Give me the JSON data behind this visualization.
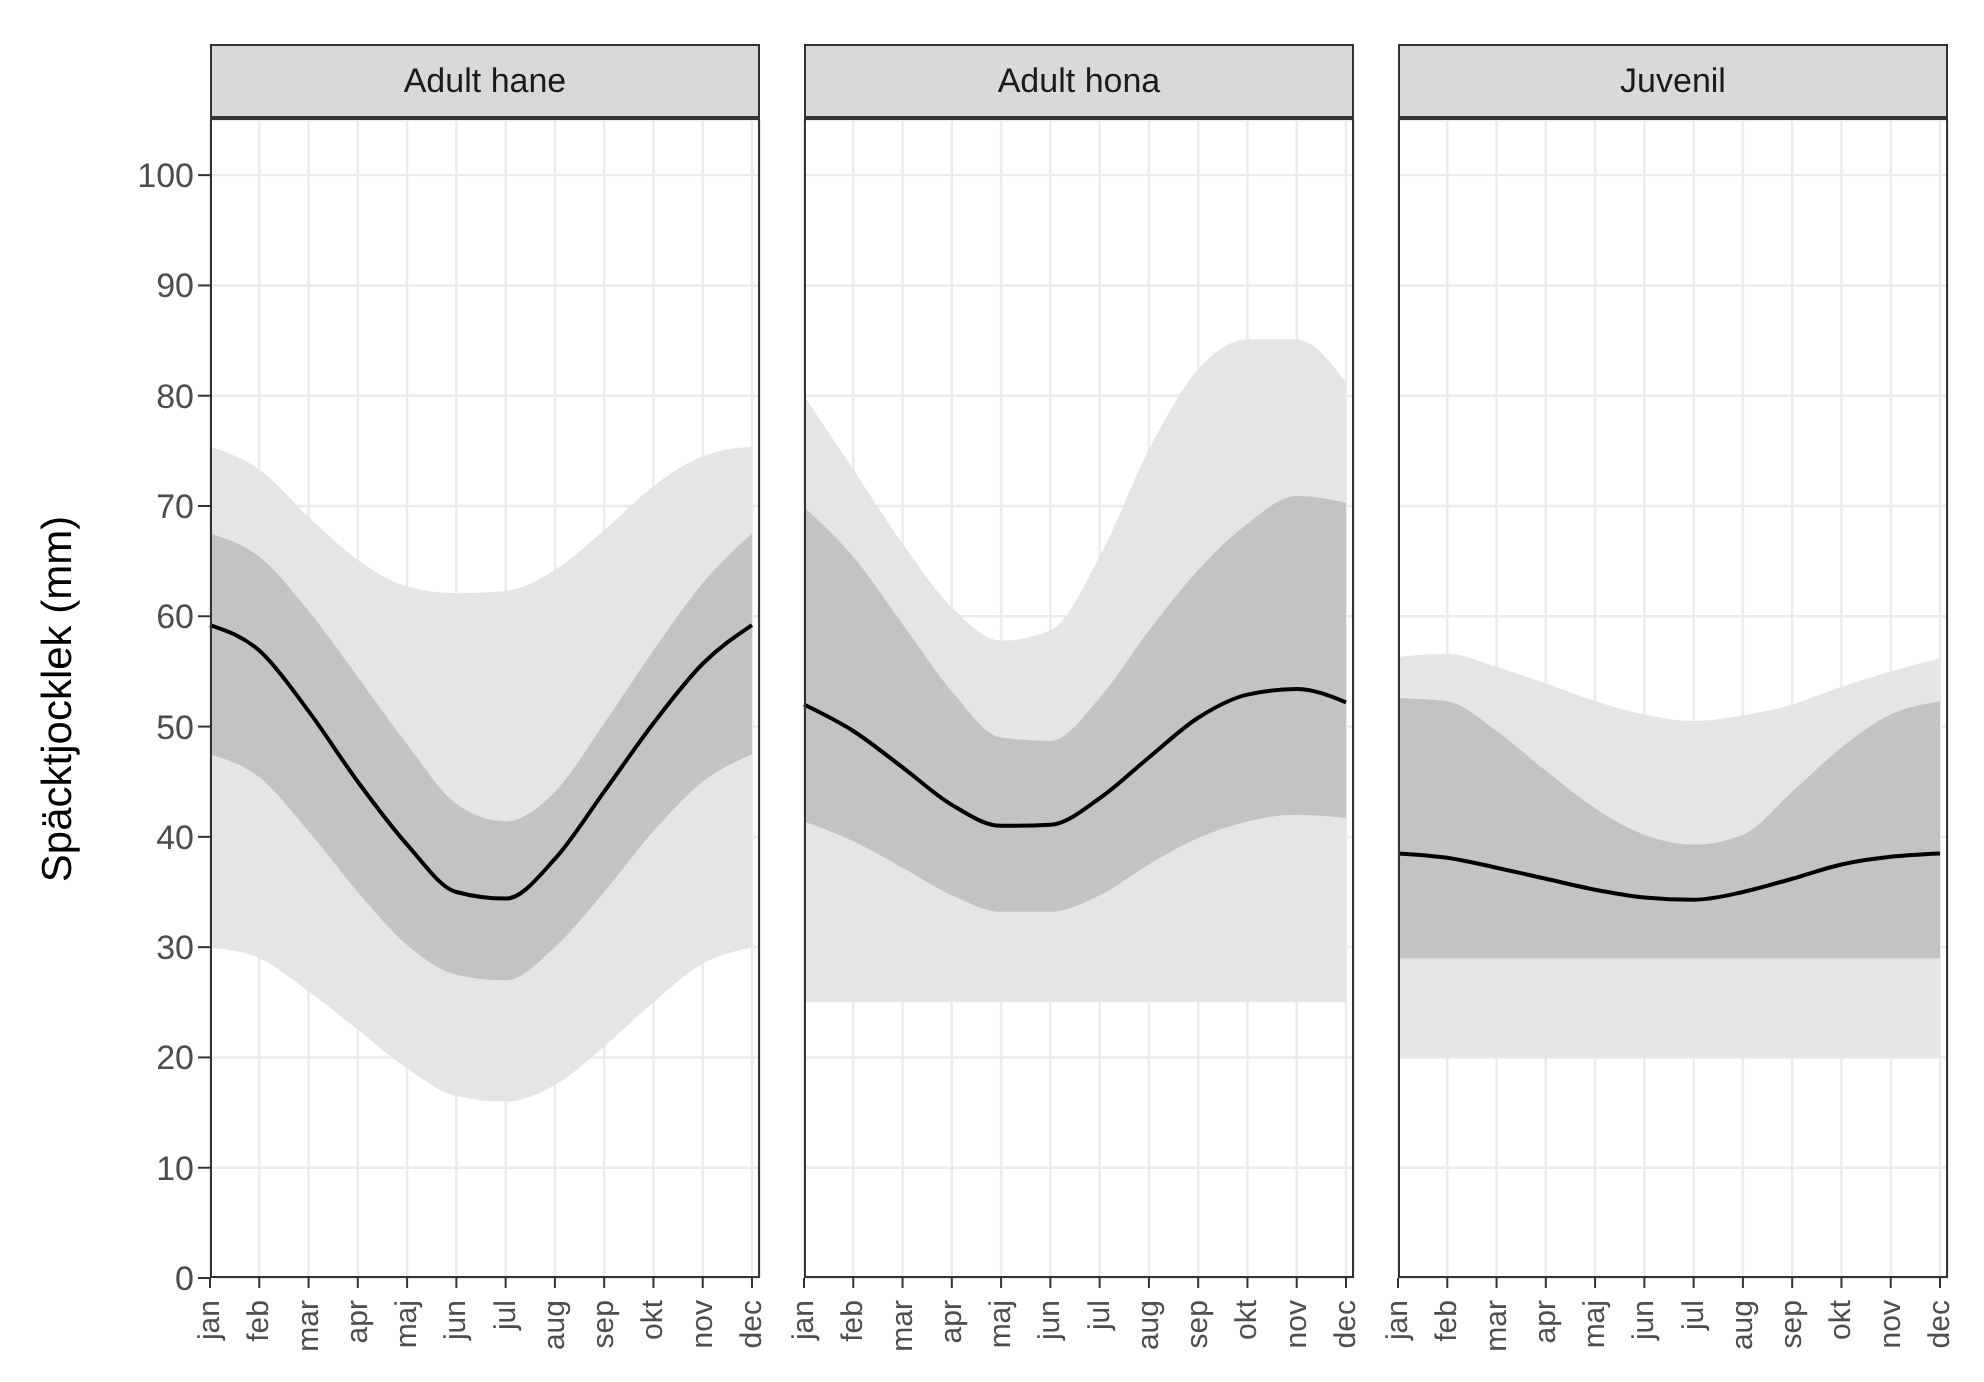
{
  "chart_data": [
    {
      "type": "line",
      "title": "Adult hane",
      "ylabel": "Späcktjocklek (mm)",
      "categories": [
        "jan",
        "feb",
        "mar",
        "apr",
        "maj",
        "jun",
        "jul",
        "aug",
        "sep",
        "okt",
        "nov",
        "dec"
      ],
      "ylim": [
        0,
        105
      ],
      "yticks": [
        0,
        10,
        20,
        30,
        40,
        50,
        60,
        70,
        80,
        90,
        100
      ],
      "grid": true,
      "series": [
        {
          "type": "area",
          "color": "#e5e5e5",
          "values": [
            null,
            null,
            null,
            null,
            null,
            null,
            null,
            null,
            null,
            null,
            null,
            null
          ],
          "lower": [
            30,
            29,
            26,
            22.5,
            19,
            16.5,
            16,
            17.5,
            21,
            25,
            28.5,
            30
          ],
          "upper": [
            75.4,
            73.3,
            69,
            65.1,
            62.7,
            62.1,
            62.3,
            64.2,
            67.8,
            71.8,
            74.5,
            75.4
          ]
        },
        {
          "color": "#000000",
          "values": [
            59.2,
            56.9,
            51.4,
            45,
            39.3,
            35,
            34.4,
            38,
            44.1,
            50.3,
            55.7,
            59.2
          ],
          "lower": [
            47.5,
            45.4,
            40.5,
            35,
            30.2,
            27.5,
            27,
            30,
            35,
            40.5,
            45,
            47.5
          ],
          "upper": [
            67.5,
            65.4,
            60.5,
            54.5,
            48.4,
            43,
            41.4,
            44.1,
            50.3,
            56.9,
            63,
            67.5
          ]
        }
      ]
    },
    {
      "type": "line",
      "title": "Adult hona",
      "categories": [
        "jan",
        "feb",
        "mar",
        "apr",
        "maj",
        "jun",
        "jul",
        "aug",
        "sep",
        "okt",
        "nov",
        "dec"
      ],
      "ylim": [
        0,
        105
      ],
      "yticks": [
        0,
        10,
        20,
        30,
        40,
        50,
        60,
        70,
        80,
        90,
        100
      ],
      "grid": true,
      "tick_labels": "x",
      "series": [
        {
          "type": "area",
          "color": "#e5e5e5",
          "values": [
            null,
            null,
            null,
            null,
            null,
            null,
            null,
            null,
            null,
            null,
            null,
            null
          ],
          "lower": [
            25,
            25,
            25,
            25,
            25,
            25,
            25,
            25,
            25,
            25,
            25,
            25
          ],
          "upper": [
            80,
            73.3,
            66.6,
            60.8,
            57.8,
            58.7,
            65.4,
            75.1,
            82.4,
            85.1,
            85.1,
            81.2
          ]
        },
        {
          "color": "#000000",
          "values": [
            52,
            49.6,
            46.3,
            42.9,
            41,
            41.1,
            43.5,
            47.2,
            50.8,
            52.9,
            53.4,
            52.2
          ],
          "lower": [
            41.4,
            39.6,
            37.2,
            34.7,
            33.2,
            33.2,
            34.7,
            37.5,
            39.9,
            41.4,
            42,
            41.7
          ],
          "upper": [
            69.9,
            65.4,
            59.3,
            53.2,
            49,
            48.7,
            52.6,
            58.7,
            64.2,
            68.4,
            70.9,
            70.3
          ]
        }
      ]
    },
    {
      "type": "line",
      "title": "Juvenil",
      "categories": [
        "jan",
        "feb",
        "mar",
        "apr",
        "maj",
        "jun",
        "jul",
        "aug",
        "sep",
        "okt",
        "nov",
        "dec"
      ],
      "ylim": [
        0,
        105
      ],
      "yticks": [
        0,
        10,
        20,
        30,
        40,
        50,
        60,
        70,
        80,
        90,
        100
      ],
      "grid": true,
      "tick_labels": "x",
      "series": [
        {
          "type": "area",
          "color": "#e5e5e5",
          "values": [
            null,
            null,
            null,
            null,
            null,
            null,
            null,
            null,
            null,
            null,
            null,
            null
          ],
          "lower": [
            20,
            20,
            20,
            20,
            20,
            20,
            20,
            20,
            20,
            20,
            20,
            20
          ],
          "upper": [
            56.3,
            56.6,
            55.4,
            53.9,
            52.3,
            51.1,
            50.5,
            51,
            52,
            53.6,
            55,
            56.2
          ]
        },
        {
          "color": "#000000",
          "values": [
            38.5,
            38.1,
            37.2,
            36.2,
            35.2,
            34.5,
            34.3,
            35,
            36.2,
            37.5,
            38.2,
            38.5
          ],
          "lower": [
            29,
            29,
            29,
            29,
            29,
            29,
            29,
            29,
            29,
            29,
            29,
            29
          ],
          "upper": [
            52.6,
            52.3,
            49.6,
            46,
            42.6,
            40.2,
            39.3,
            40.2,
            44.1,
            48.1,
            51.1,
            52.3
          ]
        }
      ]
    }
  ]
}
